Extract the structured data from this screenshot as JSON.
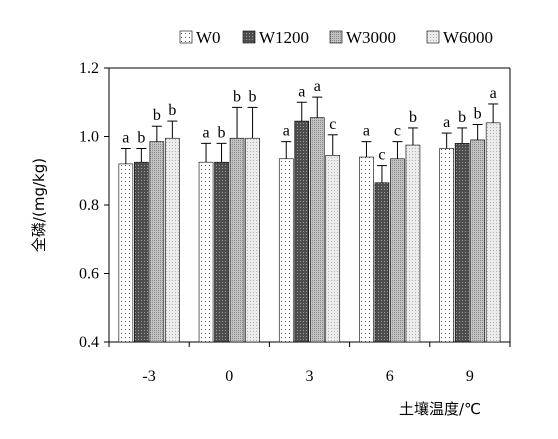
{
  "chart_data": {
    "type": "bar",
    "categories": [
      "-3",
      "0",
      "3",
      "6",
      "9"
    ],
    "series": [
      {
        "name": "W0",
        "values": [
          0.92,
          0.925,
          0.935,
          0.94,
          0.965
        ],
        "errors": [
          0.045,
          0.055,
          0.05,
          0.045,
          0.045
        ],
        "labels": [
          "a",
          "a",
          "a",
          "a",
          "a"
        ]
      },
      {
        "name": "W1200",
        "values": [
          0.925,
          0.925,
          1.045,
          0.865,
          0.98
        ],
        "errors": [
          0.04,
          0.055,
          0.055,
          0.05,
          0.045
        ],
        "labels": [
          "b",
          "b",
          "a",
          "c",
          "b"
        ]
      },
      {
        "name": "W3000",
        "values": [
          0.985,
          0.995,
          1.055,
          0.935,
          0.99
        ],
        "errors": [
          0.045,
          0.09,
          0.06,
          0.05,
          0.045
        ],
        "labels": [
          "b",
          "b",
          "a",
          "c",
          "b"
        ]
      },
      {
        "name": "W6000",
        "values": [
          0.995,
          0.995,
          0.945,
          0.975,
          1.04
        ],
        "errors": [
          0.05,
          0.09,
          0.06,
          0.05,
          0.055
        ],
        "labels": [
          "b",
          "b",
          "c",
          "b",
          "a"
        ]
      }
    ],
    "title": "",
    "xlabel": "土壤温度/℃",
    "ylabel": "全磷/(mg/kg)",
    "ylim": [
      0.4,
      1.2
    ],
    "yticks": [
      "0.4",
      "0.6",
      "0.8",
      "1.0",
      "1.2"
    ],
    "grid": false,
    "legend_position": "top-right"
  }
}
